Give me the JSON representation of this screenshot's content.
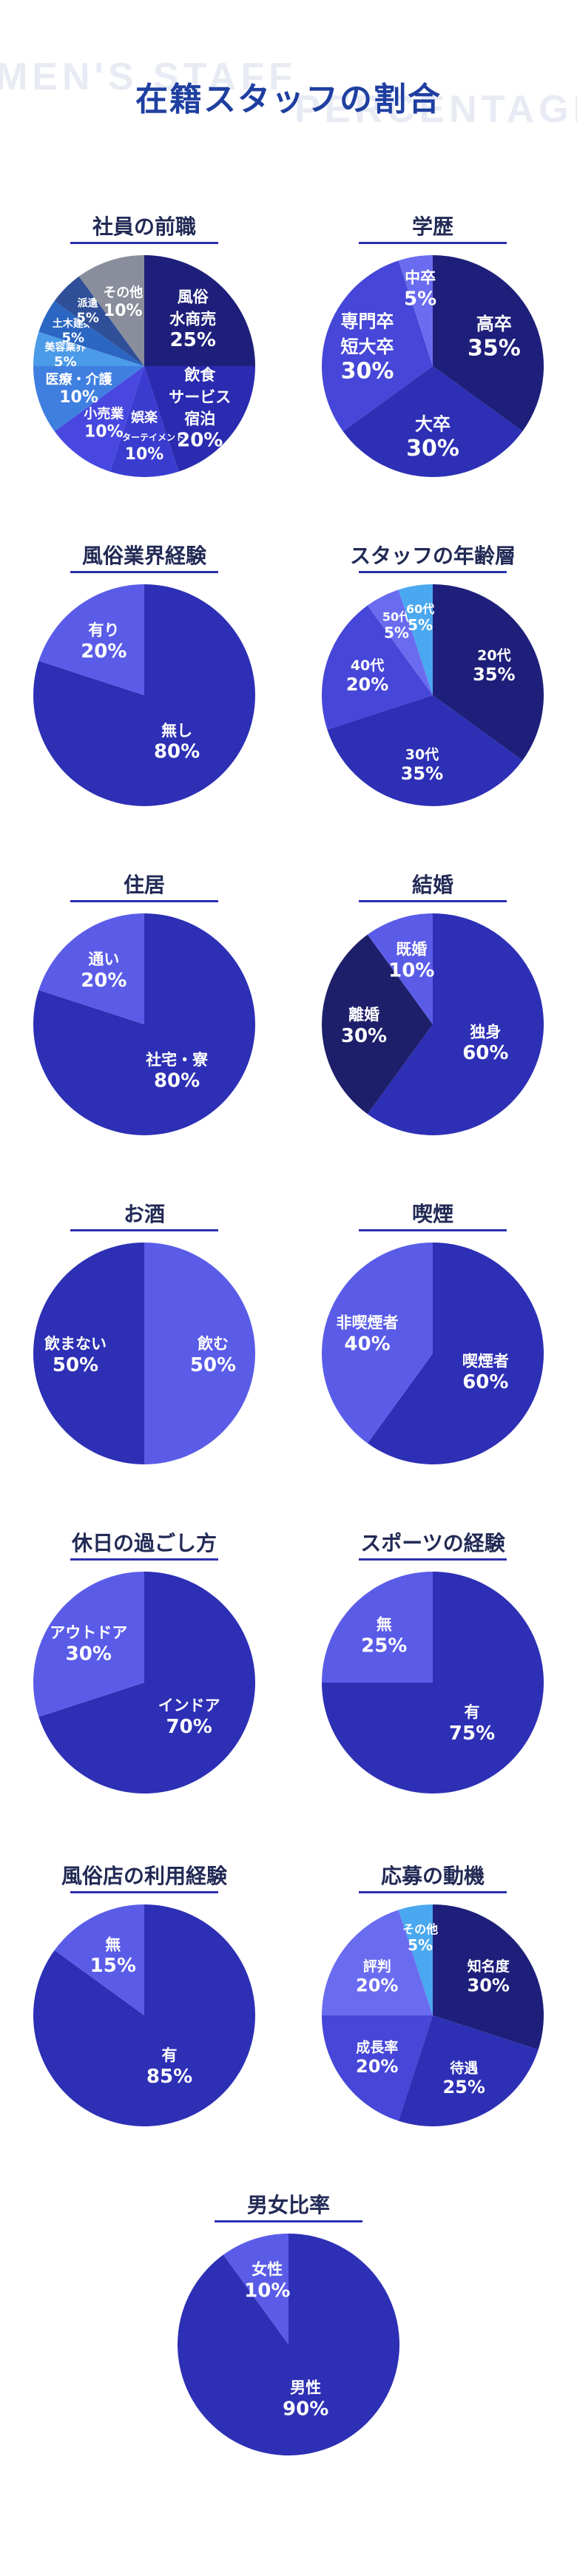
{
  "page": {
    "title": "在籍スタッフの割合",
    "bg_text_1": "MEN'S STAFF",
    "bg_text_2": "PERCENTAGE"
  },
  "chart_data": [
    {
      "type": "pie",
      "title": "社員の前職",
      "categories": [
        "風俗\n水商売",
        "飲食\nサービス\n宿泊",
        "娯楽\nエンターテイメント",
        "小売業",
        "医療・介護",
        "美容業界",
        "土木建築",
        "派遣",
        "その他"
      ],
      "values": [
        25,
        20,
        10,
        10,
        10,
        5,
        5,
        5,
        10
      ],
      "colors": [
        "#1e1f7a",
        "#2a2bb0",
        "#3a3cd0",
        "#4848e0",
        "#3f7fe0",
        "#4c9be8",
        "#2b66c2",
        "#2f4f98",
        "#8a8e9c"
      ]
    },
    {
      "type": "pie",
      "title": "学歴",
      "categories": [
        "高卒",
        "大卒",
        "専門卒\n短大卒",
        "中卒"
      ],
      "values": [
        35,
        30,
        30,
        5
      ],
      "colors": [
        "#1e1f7a",
        "#2d2fb5",
        "#4646d8",
        "#6a6cf0"
      ]
    },
    {
      "type": "pie",
      "title": "風俗業界経験",
      "categories": [
        "無し",
        "有り"
      ],
      "values": [
        80,
        20
      ],
      "colors": [
        "#2d2fb5",
        "#5a5ce8"
      ]
    },
    {
      "type": "pie",
      "title": "スタッフの年齢層",
      "categories": [
        "20代",
        "30代",
        "40代",
        "50代",
        "60代"
      ],
      "values": [
        35,
        35,
        20,
        5,
        5
      ],
      "colors": [
        "#1e1f7a",
        "#2d2fb5",
        "#4646d8",
        "#6a6cf0",
        "#4aa8f0"
      ]
    },
    {
      "type": "pie",
      "title": "住居",
      "categories": [
        "社宅・寮",
        "通い"
      ],
      "values": [
        80,
        20
      ],
      "colors": [
        "#2d2fb5",
        "#5a5ce8"
      ]
    },
    {
      "type": "pie",
      "title": "結婚",
      "categories": [
        "独身",
        "離婚",
        "既婚"
      ],
      "values": [
        60,
        30,
        10
      ],
      "colors": [
        "#2d2fb5",
        "#1e1f6a",
        "#5a5ce8"
      ]
    },
    {
      "type": "pie",
      "title": "お酒",
      "categories": [
        "飲む",
        "飲まない"
      ],
      "values": [
        50,
        50
      ],
      "colors": [
        "#5a5ce8",
        "#2d2fb5"
      ]
    },
    {
      "type": "pie",
      "title": "喫煙",
      "categories": [
        "喫煙者",
        "非喫煙者"
      ],
      "values": [
        60,
        40
      ],
      "colors": [
        "#2d2fb5",
        "#5a5ce8"
      ]
    },
    {
      "type": "pie",
      "title": "休日の過ごし方",
      "categories": [
        "インドア",
        "アウトドア"
      ],
      "values": [
        70,
        30
      ],
      "colors": [
        "#2d2fb5",
        "#5a5ce8"
      ]
    },
    {
      "type": "pie",
      "title": "スポーツの経験",
      "categories": [
        "有",
        "無"
      ],
      "values": [
        75,
        25
      ],
      "colors": [
        "#2d2fb5",
        "#5a5ce8"
      ]
    },
    {
      "type": "pie",
      "title": "風俗店の利用経験",
      "categories": [
        "有",
        "無"
      ],
      "values": [
        85,
        15
      ],
      "colors": [
        "#2d2fb5",
        "#5a5ce8"
      ]
    },
    {
      "type": "pie",
      "title": "応募の動機",
      "categories": [
        "知名度",
        "待遇",
        "成長率",
        "評判",
        "その他"
      ],
      "values": [
        30,
        25,
        20,
        20,
        5
      ],
      "colors": [
        "#1e1f7a",
        "#2d2fb5",
        "#4646d8",
        "#6a6cf0",
        "#4aa8f0"
      ]
    },
    {
      "type": "pie",
      "title": "男女比率",
      "categories": [
        "男性",
        "女性"
      ],
      "values": [
        90,
        10
      ],
      "colors": [
        "#2d2fb5",
        "#5a5ce8"
      ]
    }
  ]
}
